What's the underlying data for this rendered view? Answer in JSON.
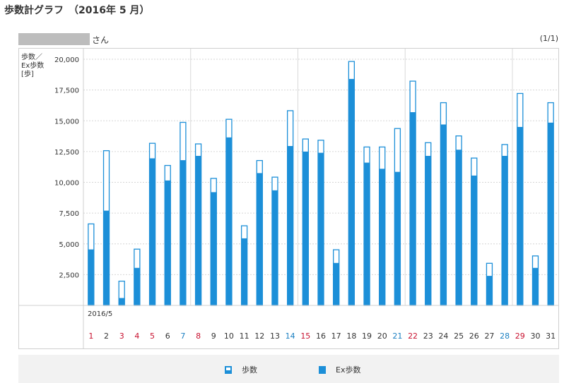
{
  "page": {
    "title": "歩数計グラフ　（2016年 5 月）",
    "user_suffix": "さん",
    "page_indicator": "(1/1)"
  },
  "chart_data": {
    "type": "bar",
    "stacked_overlay": true,
    "title": "",
    "ylabel_lines": [
      "歩数／",
      "Ex歩数",
      "[歩]"
    ],
    "xlabel": "2016/5",
    "ylim": [
      0,
      20000
    ],
    "yticks": [
      2500,
      5000,
      7500,
      10000,
      12500,
      15000,
      17500,
      20000
    ],
    "ytick_labels": [
      "2,500",
      "5,000",
      "7,500",
      "10,000",
      "12,500",
      "15,000",
      "17,500",
      "20,000"
    ],
    "grid": true,
    "legend_position": "bottom",
    "categories": [
      "1",
      "2",
      "3",
      "4",
      "5",
      "6",
      "7",
      "8",
      "9",
      "10",
      "11",
      "12",
      "13",
      "14",
      "15",
      "16",
      "17",
      "18",
      "19",
      "20",
      "21",
      "22",
      "23",
      "24",
      "25",
      "26",
      "27",
      "28",
      "29",
      "30",
      "31"
    ],
    "day_colors": {
      "sunday_holiday": "#c8102e",
      "saturday": "#1a7fc1",
      "weekday": "#333333"
    },
    "red_days": [
      "1",
      "3",
      "4",
      "5",
      "8",
      "15",
      "22",
      "29"
    ],
    "blue_days": [
      "7",
      "14",
      "21",
      "28"
    ],
    "week_separators_after_day": [
      7,
      14,
      21,
      28
    ],
    "series": [
      {
        "name": "歩数",
        "color": "#1c8fd8",
        "style": "outline",
        "values": [
          6650,
          12600,
          2000,
          4600,
          13200,
          11400,
          14900,
          13150,
          10350,
          15150,
          6500,
          11800,
          10450,
          15850,
          13550,
          13450,
          4550,
          19850,
          12900,
          12900,
          14400,
          18250,
          13250,
          16500,
          13800,
          12000,
          3450,
          13100,
          17250,
          4050,
          16500
        ]
      },
      {
        "name": "Ex歩数",
        "color": "#1c8fd8",
        "style": "filled",
        "values": [
          4550,
          7700,
          600,
          3050,
          11950,
          10150,
          11800,
          12150,
          9200,
          13650,
          5450,
          10750,
          9350,
          12950,
          12500,
          12400,
          3450,
          18400,
          11600,
          11100,
          10850,
          15700,
          12150,
          14700,
          12650,
          10550,
          2400,
          12150,
          14500,
          3050,
          14850
        ]
      }
    ]
  },
  "legend": {
    "steps_label": "歩数",
    "ex_label": "Ex歩数"
  }
}
